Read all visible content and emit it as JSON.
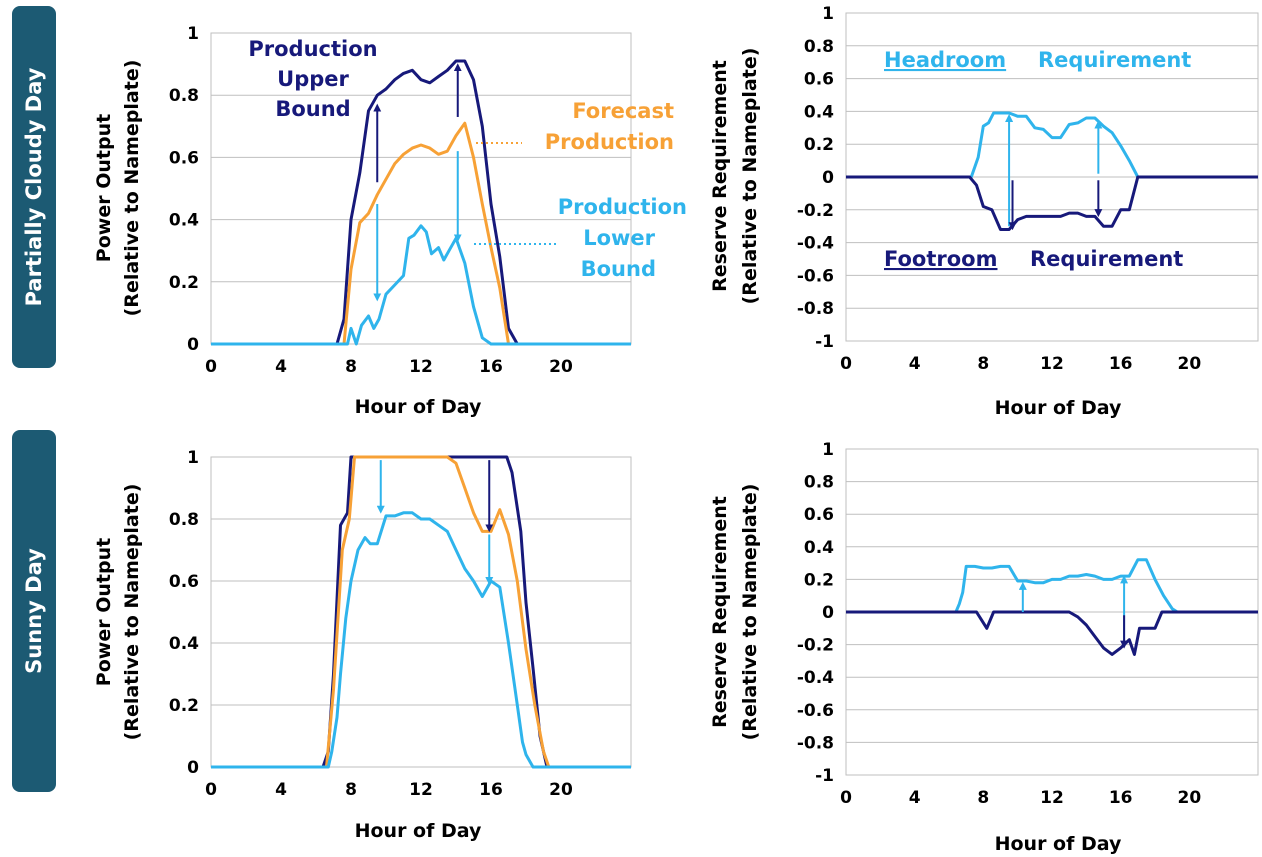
{
  "rows": [
    {
      "label": "Partially Cloudy Day",
      "color": "#1c5a73"
    },
    {
      "label": "Sunny Day",
      "color": "#1c5a73"
    }
  ],
  "colors": {
    "upper": "#17197a",
    "forecast": "#f7a136",
    "lower": "#2fb4ec",
    "grid": "#bfbfbf"
  },
  "chart_data": [
    {
      "type": "line",
      "panel": "power-cloudy",
      "xlabel": "Hour of Day",
      "ylabel": "Power Output",
      "ylabel2": "(Relative to Nameplate)",
      "xlim": [
        0,
        24
      ],
      "ylim": [
        0,
        1
      ],
      "xticks": [
        "0",
        "4",
        "8",
        "12",
        "16",
        "20"
      ],
      "yticks": [
        "0",
        "0.2",
        "0.4",
        "0.6",
        "0.8",
        "1"
      ],
      "series": [
        {
          "role": "upper",
          "x": [
            0,
            7.2,
            7.6,
            8,
            8.5,
            9,
            9.5,
            10,
            10.5,
            11,
            11.5,
            12,
            12.5,
            13,
            13.5,
            14,
            14.5,
            15,
            15.5,
            16,
            16.5,
            17,
            17.5,
            24
          ],
          "y": [
            0,
            0,
            0.08,
            0.4,
            0.55,
            0.75,
            0.8,
            0.82,
            0.85,
            0.87,
            0.88,
            0.85,
            0.84,
            0.86,
            0.88,
            0.91,
            0.91,
            0.85,
            0.7,
            0.45,
            0.28,
            0.05,
            0,
            0
          ]
        },
        {
          "role": "forecast",
          "x": [
            0,
            7.6,
            8,
            8.5,
            9,
            9.5,
            10,
            10.5,
            11,
            11.5,
            12,
            12.5,
            13,
            13.5,
            14,
            14.5,
            15,
            15.5,
            16,
            16.5,
            17,
            24
          ],
          "y": [
            0,
            0,
            0.24,
            0.39,
            0.42,
            0.48,
            0.53,
            0.58,
            0.61,
            0.63,
            0.64,
            0.63,
            0.61,
            0.62,
            0.67,
            0.71,
            0.6,
            0.45,
            0.31,
            0.18,
            0,
            0
          ]
        },
        {
          "role": "lower",
          "x": [
            0,
            7.8,
            8,
            8.3,
            8.6,
            9,
            9.3,
            9.6,
            10,
            10.5,
            11,
            11.3,
            11.6,
            12,
            12.3,
            12.6,
            13,
            13.3,
            13.6,
            14,
            14.5,
            15,
            15.5,
            16,
            24
          ],
          "y": [
            0,
            0,
            0.05,
            0.0,
            0.06,
            0.09,
            0.05,
            0.08,
            0.16,
            0.19,
            0.22,
            0.34,
            0.35,
            0.38,
            0.36,
            0.29,
            0.31,
            0.27,
            0.3,
            0.34,
            0.26,
            0.12,
            0.02,
            0,
            0
          ]
        }
      ],
      "arrows": [
        {
          "x": 9.5,
          "y1": 0.52,
          "y2": 0.76,
          "role": "upper"
        },
        {
          "x": 14.1,
          "y1": 0.73,
          "y2": 0.89,
          "role": "upper"
        },
        {
          "x": 9.5,
          "y1": 0.45,
          "y2": 0.15,
          "role": "lower"
        },
        {
          "x": 14.1,
          "y1": 0.62,
          "y2": 0.34,
          "role": "lower"
        }
      ],
      "annotations": [
        {
          "text": "Production",
          "role": "upper"
        },
        {
          "text": "Upper",
          "role": "upper"
        },
        {
          "text": "Bound",
          "role": "upper"
        },
        {
          "text": "Forecast",
          "role": "forecast"
        },
        {
          "text": "Production",
          "role": "forecast"
        },
        {
          "text": "Production",
          "role": "lower"
        },
        {
          "text": "Lower",
          "role": "lower"
        },
        {
          "text": "Bound",
          "role": "lower"
        }
      ]
    },
    {
      "type": "line",
      "panel": "reserve-cloudy",
      "xlabel": "Hour of Day",
      "ylabel": "Reserve Requirement",
      "ylabel2": "(Relative to Nameplate)",
      "xlim": [
        0,
        24
      ],
      "ylim": [
        -1,
        1
      ],
      "xticks": [
        "0",
        "4",
        "8",
        "12",
        "16",
        "20"
      ],
      "yticks": [
        "-1",
        "-0.8",
        "-0.6",
        "-0.4",
        "-0.2",
        "0",
        "0.2",
        "0.4",
        "0.6",
        "0.8",
        "1"
      ],
      "series": [
        {
          "role": "headroom",
          "x": [
            0,
            7.3,
            7.7,
            8,
            8.3,
            8.6,
            9,
            9.5,
            10,
            10.5,
            11,
            11.5,
            12,
            12.5,
            13,
            13.5,
            14,
            14.5,
            15,
            15.5,
            16,
            16.5,
            17,
            24
          ],
          "y": [
            0,
            0,
            0.12,
            0.31,
            0.33,
            0.39,
            0.39,
            0.39,
            0.37,
            0.37,
            0.3,
            0.29,
            0.24,
            0.24,
            0.32,
            0.33,
            0.36,
            0.36,
            0.31,
            0.27,
            0.19,
            0.1,
            0,
            0
          ]
        },
        {
          "role": "footroom",
          "x": [
            0,
            7.2,
            7.6,
            8,
            8.5,
            9,
            9.5,
            10,
            10.5,
            11,
            11.5,
            12,
            12.5,
            13,
            13.5,
            14,
            14.5,
            15,
            15.5,
            16,
            16.5,
            17,
            24
          ],
          "y": [
            0,
            0,
            -0.05,
            -0.18,
            -0.2,
            -0.32,
            -0.32,
            -0.26,
            -0.24,
            -0.24,
            -0.24,
            -0.24,
            -0.24,
            -0.22,
            -0.22,
            -0.24,
            -0.24,
            -0.3,
            -0.3,
            -0.2,
            -0.2,
            0,
            0
          ]
        }
      ],
      "arrows": [
        {
          "x": 9.5,
          "y1": -0.3,
          "y2": 0.36,
          "role": "headroom"
        },
        {
          "x": 14.7,
          "y1": 0.02,
          "y2": 0.32,
          "role": "headroom"
        },
        {
          "x": 9.7,
          "y1": -0.02,
          "y2": -0.3,
          "role": "footroom"
        },
        {
          "x": 14.7,
          "y1": -0.02,
          "y2": -0.22,
          "role": "footroom"
        }
      ],
      "annotations": [
        {
          "text": "Headroom",
          "role": "headroom",
          "underline": true
        },
        {
          "text": "Requirement",
          "role": "headroom"
        },
        {
          "text": "Footroom",
          "role": "footroom",
          "underline": true
        },
        {
          "text": "Requirement",
          "role": "footroom"
        }
      ]
    },
    {
      "type": "line",
      "panel": "power-sunny",
      "xlabel": "Hour of Day",
      "ylabel": "Power Output",
      "ylabel2": "(Relative to Nameplate)",
      "xlim": [
        0,
        24
      ],
      "ylim": [
        0,
        1
      ],
      "xticks": [
        "0",
        "4",
        "8",
        "12",
        "16",
        "20"
      ],
      "yticks": [
        "0",
        "0.2",
        "0.4",
        "0.6",
        "0.8",
        "1"
      ],
      "series": [
        {
          "role": "upper",
          "x": [
            0,
            6.4,
            6.7,
            7,
            7.4,
            7.8,
            8,
            8.3,
            16.9,
            17.2,
            17.7,
            18,
            18.4,
            18.8,
            19.2,
            24
          ],
          "y": [
            0,
            0,
            0.05,
            0.3,
            0.78,
            0.82,
            1,
            1,
            1,
            0.95,
            0.76,
            0.53,
            0.32,
            0.1,
            0,
            0
          ]
        },
        {
          "role": "forecast",
          "x": [
            0,
            6.6,
            7,
            7.5,
            7.9,
            8.2,
            13.5,
            14,
            14.5,
            15,
            15.5,
            16,
            16.5,
            17,
            17.5,
            18,
            18.5,
            19,
            19.3,
            24
          ],
          "y": [
            0,
            0,
            0.25,
            0.7,
            0.8,
            1,
            1,
            0.98,
            0.9,
            0.82,
            0.76,
            0.76,
            0.83,
            0.75,
            0.6,
            0.38,
            0.2,
            0.05,
            0,
            0
          ]
        },
        {
          "role": "lower",
          "x": [
            0,
            6.7,
            6.9,
            7.2,
            7.4,
            7.7,
            8,
            8.4,
            8.8,
            9.1,
            9.5,
            10,
            10.5,
            11,
            11.5,
            12,
            12.5,
            13,
            13.5,
            14,
            14.5,
            15,
            15.5,
            16,
            16.5,
            17,
            17.5,
            17.8,
            18,
            18.4,
            24
          ],
          "y": [
            0,
            0,
            0.05,
            0.16,
            0.3,
            0.48,
            0.6,
            0.7,
            0.74,
            0.72,
            0.72,
            0.81,
            0.81,
            0.82,
            0.82,
            0.8,
            0.8,
            0.78,
            0.76,
            0.7,
            0.64,
            0.6,
            0.55,
            0.6,
            0.58,
            0.4,
            0.2,
            0.08,
            0.04,
            0,
            0
          ]
        }
      ],
      "arrows": [
        {
          "x": 9.7,
          "y1": 0.99,
          "y2": 0.83,
          "role": "lower"
        },
        {
          "x": 15.9,
          "y1": 0.99,
          "y2": 0.77,
          "role": "upper"
        },
        {
          "x": 15.9,
          "y1": 0.75,
          "y2": 0.6,
          "role": "lower"
        }
      ],
      "annotations": []
    },
    {
      "type": "line",
      "panel": "reserve-sunny",
      "xlabel": "Hour of Day",
      "ylabel": "Reserve Requirement",
      "ylabel2": "(Relative to Nameplate)",
      "xlim": [
        0,
        24
      ],
      "ylim": [
        -1,
        1
      ],
      "xticks": [
        "0",
        "4",
        "8",
        "12",
        "16",
        "20"
      ],
      "yticks": [
        "-1",
        "-0.8",
        "-0.6",
        "-0.4",
        "-0.2",
        "0",
        "0.2",
        "0.4",
        "0.6",
        "0.8",
        "1"
      ],
      "series": [
        {
          "role": "headroom",
          "x": [
            0,
            6.4,
            6.6,
            6.8,
            7,
            7.5,
            8,
            8.5,
            9,
            9.5,
            10,
            10.5,
            11,
            11.5,
            12,
            12.5,
            13,
            13.5,
            14,
            14.5,
            15,
            15.5,
            16,
            16.5,
            17,
            17.5,
            18,
            18.5,
            19,
            19.3,
            24
          ],
          "y": [
            0,
            0,
            0.05,
            0.12,
            0.28,
            0.28,
            0.27,
            0.27,
            0.28,
            0.28,
            0.19,
            0.19,
            0.18,
            0.18,
            0.2,
            0.2,
            0.22,
            0.22,
            0.23,
            0.22,
            0.2,
            0.2,
            0.22,
            0.22,
            0.32,
            0.32,
            0.2,
            0.1,
            0.02,
            0,
            0
          ]
        },
        {
          "role": "footroom",
          "x": [
            0,
            7.6,
            7.9,
            8.2,
            8.6,
            13,
            13.5,
            14,
            14.5,
            15,
            15.5,
            16,
            16.5,
            16.8,
            17.1,
            17.5,
            18,
            18.4,
            24
          ],
          "y": [
            0,
            0,
            -0.05,
            -0.1,
            0,
            0,
            -0.03,
            -0.08,
            -0.15,
            -0.22,
            -0.26,
            -0.22,
            -0.17,
            -0.26,
            -0.1,
            -0.1,
            -0.1,
            0,
            0
          ]
        }
      ],
      "arrows": [
        {
          "x": 10.3,
          "y1": 0.0,
          "y2": 0.16,
          "role": "headroom"
        },
        {
          "x": 16.2,
          "y1": -0.18,
          "y2": 0.2,
          "role": "headroom"
        },
        {
          "x": 16.2,
          "y1": -0.02,
          "y2": -0.2,
          "role": "footroom"
        }
      ],
      "annotations": []
    }
  ]
}
